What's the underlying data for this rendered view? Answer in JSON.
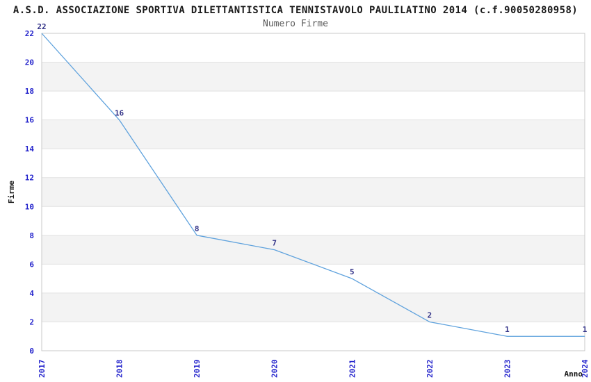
{
  "chart_data": {
    "type": "line",
    "title": "A.S.D. ASSOCIAZIONE SPORTIVA DILETTANTISTICA TENNISTAVOLO PAULILATINO 2014 (c.f.90050280958)",
    "subtitle": "Numero Firme",
    "x": [
      2017,
      2018,
      2019,
      2020,
      2021,
      2022,
      2023,
      2024
    ],
    "values": [
      22,
      16,
      8,
      7,
      5,
      2,
      1,
      1
    ],
    "xlabel": "Anno",
    "ylabel": "Firme",
    "ylim": [
      0,
      22
    ],
    "ytick_step": 2,
    "yticks": [
      0,
      2,
      4,
      6,
      8,
      10,
      12,
      14,
      16,
      18,
      20,
      22
    ],
    "grid": "alternating-horizontal-bands",
    "legend": "none",
    "point_labels_shown": true,
    "colors": {
      "line": "#5fa2dd",
      "tick_label": "#2424cc",
      "point_label": "#333388",
      "band": "#f3f3f3",
      "grid_line": "#e2e2e2",
      "border": "#c9c9c9",
      "title": "#1a1a1a",
      "subtitle": "#595959",
      "axis_label": "#1a1a1a"
    }
  }
}
